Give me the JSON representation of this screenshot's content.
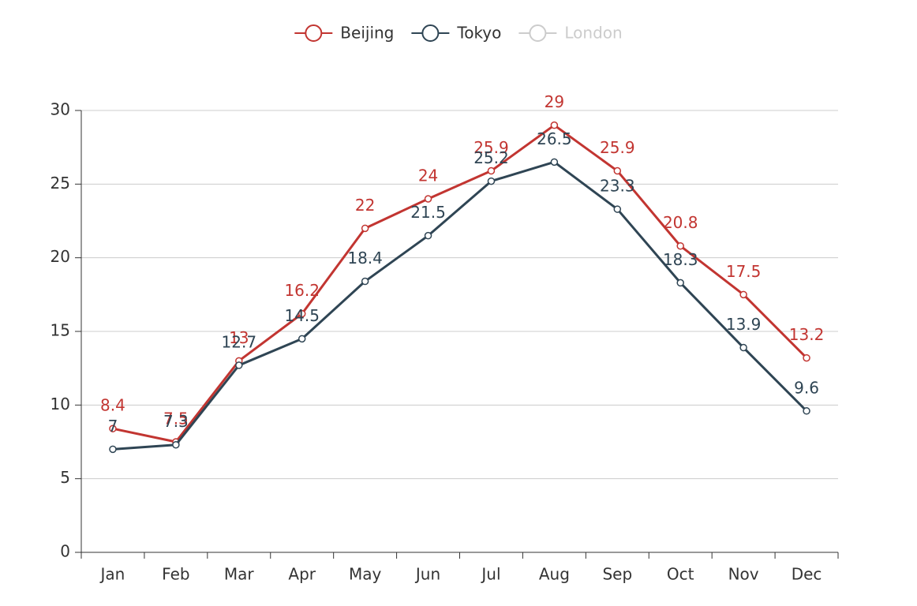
{
  "chart_data": {
    "type": "line",
    "categories": [
      "Jan",
      "Feb",
      "Mar",
      "Apr",
      "May",
      "Jun",
      "Jul",
      "Aug",
      "Sep",
      "Oct",
      "Nov",
      "Dec"
    ],
    "series": [
      {
        "name": "Beijing",
        "color": "#c23531",
        "values": [
          8.4,
          7.5,
          13,
          16.2,
          22,
          24,
          25.9,
          29,
          25.9,
          20.8,
          17.5,
          13.2
        ]
      },
      {
        "name": "Tokyo",
        "color": "#2f4554",
        "values": [
          7,
          7.3,
          12.7,
          14.5,
          18.4,
          21.5,
          25.2,
          26.5,
          23.3,
          18.3,
          13.9,
          9.6
        ]
      }
    ],
    "legend": [
      {
        "name": "Beijing",
        "color": "#c23531",
        "selected": true
      },
      {
        "name": "Tokyo",
        "color": "#2f4554",
        "selected": true
      },
      {
        "name": "London",
        "color": "#cccccc",
        "selected": false
      }
    ],
    "ylim": [
      0,
      30
    ],
    "yticks": [
      0,
      5,
      10,
      15,
      20,
      25,
      30
    ],
    "grid": true,
    "data_labels": true
  }
}
